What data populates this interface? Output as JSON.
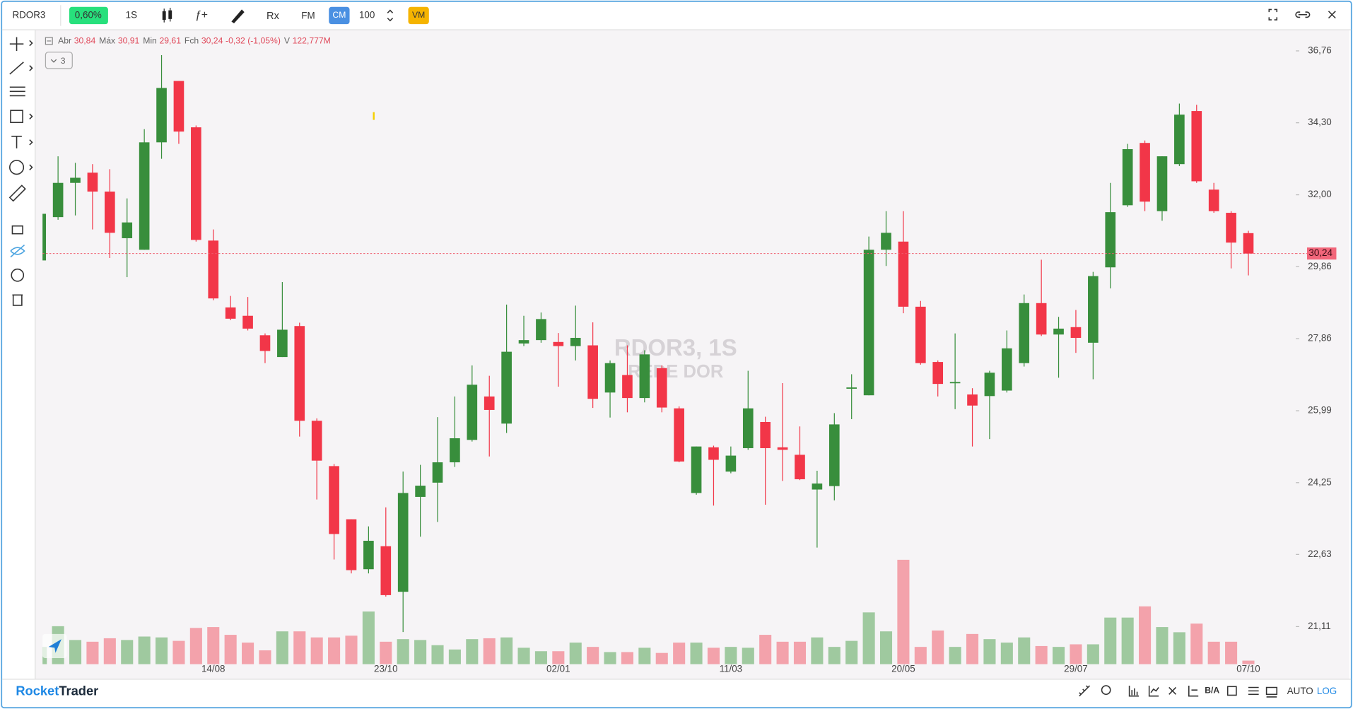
{
  "toolbar": {
    "symbol": "RDOR3",
    "change": "0,60%",
    "interval": "1S",
    "function_label": "ƒ+",
    "study_label": "Rx",
    "fm_label": "FM",
    "cm_button": "CM",
    "quantity": "100",
    "vm_button": "VM"
  },
  "chart_data": {
    "type": "candlestick",
    "title": "RDOR3, 1S",
    "subtitle": "REDE DOR",
    "ohlc_legend": [
      {
        "label": "Abr",
        "value": "30,84"
      },
      {
        "label": "Máx",
        "value": "30,91"
      },
      {
        "label": "Min",
        "value": "29,61"
      },
      {
        "label": "Fch",
        "value": "30,24"
      }
    ],
    "change": "-0,32 (-1,05%)",
    "volume_label": "V",
    "volume_text": "122,777M",
    "indicator_count": "3",
    "categories": [
      null,
      null,
      null,
      null,
      null,
      null,
      null,
      null,
      null,
      null,
      "14/08",
      null,
      null,
      null,
      null,
      null,
      null,
      null,
      null,
      null,
      "23/10",
      null,
      null,
      null,
      null,
      null,
      null,
      null,
      null,
      null,
      "02/01",
      null,
      null,
      null,
      null,
      null,
      null,
      null,
      null,
      null,
      "11/03",
      null,
      null,
      null,
      null,
      null,
      null,
      null,
      null,
      null,
      "20/05",
      null,
      null,
      null,
      null,
      null,
      null,
      null,
      null,
      null,
      "29/07",
      null,
      null,
      null,
      null,
      null,
      null,
      null,
      null,
      null,
      "07/10"
    ],
    "open": [
      30.04,
      31.32,
      32.37,
      32.69,
      32.1,
      30.69,
      30.35,
      33.66,
      35.71,
      34.15,
      30.62,
      28.71,
      28.48,
      27.95,
      27.37,
      28.2,
      25.74,
      24.64,
      23.41,
      22.31,
      22.81,
      21.83,
      23.92,
      24.25,
      24.73,
      25.27,
      26.35,
      25.67,
      27.73,
      27.82,
      27.77,
      27.66,
      27.68,
      26.45,
      26.9,
      26.31,
      27.08,
      26.05,
      24.01,
      25.09,
      24.51,
      25.07,
      25.71,
      25.09,
      24.91,
      24.09,
      24.17,
      26.56,
      26.38,
      30.35,
      30.59,
      28.73,
      27.24,
      26.69,
      26.4,
      26.36,
      26.5,
      27.21,
      28.83,
      27.97,
      28.17,
      27.75,
      29.84,
      31.68,
      33.64,
      31.5,
      32.96,
      34.69,
      32.16,
      31.45,
      30.84
    ],
    "high": [
      31.42,
      33.21,
      33.0,
      32.96,
      32.8,
      31.89,
      34.09,
      36.61,
      35.71,
      34.21,
      30.95,
      29.03,
      29.0,
      28.0,
      29.42,
      28.29,
      25.8,
      24.69,
      23.41,
      23.25,
      23.68,
      24.51,
      24.67,
      25.83,
      26.35,
      27.15,
      26.88,
      28.79,
      28.48,
      28.57,
      28.01,
      28.76,
      28.3,
      27.28,
      27.68,
      27.55,
      27.15,
      26.1,
      25.11,
      25.13,
      25.11,
      27.01,
      25.84,
      26.69,
      25.6,
      24.53,
      25.93,
      26.92,
      30.74,
      31.5,
      31.5,
      28.89,
      27.28,
      28.0,
      26.56,
      27.01,
      28.08,
      29.07,
      30.06,
      28.45,
      28.64,
      29.71,
      32.37,
      33.61,
      33.72,
      33.21,
      34.94,
      34.9,
      32.37,
      31.5,
      30.91
    ],
    "low": [
      30.04,
      31.24,
      31.37,
      30.95,
      30.11,
      29.56,
      30.35,
      33.13,
      33.61,
      30.59,
      28.91,
      28.36,
      28.08,
      27.21,
      27.37,
      25.35,
      23.86,
      22.52,
      22.22,
      22.22,
      21.73,
      21.0,
      23.02,
      23.35,
      24.62,
      25.23,
      24.87,
      25.44,
      27.66,
      27.75,
      26.6,
      27.28,
      26.06,
      25.82,
      25.95,
      26.2,
      25.95,
      24.73,
      23.97,
      23.72,
      24.47,
      25.03,
      23.74,
      24.29,
      24.31,
      22.78,
      23.84,
      25.78,
      26.38,
      29.88,
      28.55,
      27.17,
      26.35,
      26.03,
      25.11,
      25.29,
      26.45,
      27.12,
      27.93,
      26.83,
      27.48,
      26.79,
      29.24,
      31.63,
      31.5,
      31.21,
      32.9,
      32.37,
      31.45,
      29.81,
      29.61
    ],
    "close": [
      31.42,
      32.37,
      32.53,
      32.1,
      30.85,
      31.16,
      33.66,
      35.47,
      34.01,
      30.64,
      28.96,
      28.4,
      28.13,
      27.53,
      28.1,
      25.74,
      24.77,
      23.08,
      22.29,
      22.93,
      21.76,
      24.01,
      24.18,
      24.73,
      25.31,
      26.65,
      26.01,
      27.51,
      27.82,
      28.39,
      27.66,
      27.88,
      26.29,
      27.21,
      26.31,
      27.44,
      26.07,
      24.75,
      25.11,
      24.79,
      24.89,
      26.05,
      25.07,
      25.03,
      24.33,
      24.23,
      25.65,
      26.58,
      30.35,
      30.85,
      28.73,
      27.21,
      26.67,
      26.72,
      26.12,
      26.96,
      27.6,
      28.83,
      27.97,
      28.13,
      27.88,
      29.59,
      31.47,
      33.44,
      31.79,
      33.21,
      34.57,
      32.42,
      31.5,
      30.56,
      30.24
    ],
    "volume": [
      600,
      1320,
      840,
      780,
      900,
      840,
      960,
      930,
      810,
      1260,
      1290,
      1020,
      750,
      480,
      1140,
      1140,
      930,
      930,
      990,
      1830,
      780,
      870,
      840,
      660,
      510,
      870,
      900,
      930,
      570,
      450,
      450,
      750,
      600,
      420,
      420,
      570,
      390,
      750,
      750,
      570,
      600,
      570,
      1020,
      780,
      780,
      930,
      600,
      810,
      1800,
      1140,
      3630,
      600,
      1170,
      600,
      1050,
      870,
      750,
      930,
      630,
      600,
      690,
      690,
      1620,
      1620,
      2010,
      1290,
      1110,
      1410,
      780,
      780,
      122.777
    ],
    "up_color": "#388e3c",
    "down_color": "#f23648",
    "volume_up_color": "#9fc99f",
    "volume_down_color": "#f3a2ab",
    "log_scale": true,
    "grid": false,
    "ylim": [
      20.36,
      37.5
    ],
    "yticks": [
      {
        "value": 36.76,
        "label": "36,76"
      },
      {
        "value": 34.3,
        "label": "34,30"
      },
      {
        "value": 32.0,
        "label": "32,00"
      },
      {
        "value": 29.86,
        "label": "29,86"
      },
      {
        "value": 27.86,
        "label": "27,86"
      },
      {
        "value": 25.99,
        "label": "25,99"
      },
      {
        "value": 24.25,
        "label": "24,25"
      },
      {
        "value": 22.63,
        "label": "22,63"
      },
      {
        "value": 21.11,
        "label": "21,11"
      }
    ],
    "last_price": {
      "value": 30.24,
      "label": "30,24"
    }
  },
  "footer": {
    "brand_1": "Rocket",
    "brand_2": "Trader",
    "ba": "B/A",
    "auto": "AUTO",
    "log": "LOG"
  }
}
